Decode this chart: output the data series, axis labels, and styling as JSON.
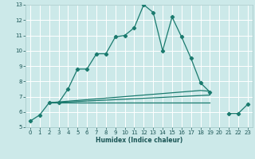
{
  "xlabel": "Humidex (Indice chaleur)",
  "ylabel": "",
  "xlim": [
    -0.5,
    23.5
  ],
  "ylim": [
    5,
    13
  ],
  "yticks": [
    5,
    6,
    7,
    8,
    9,
    10,
    11,
    12,
    13
  ],
  "xticks": [
    0,
    1,
    2,
    3,
    4,
    5,
    6,
    7,
    8,
    9,
    10,
    11,
    12,
    13,
    14,
    15,
    16,
    17,
    18,
    19,
    20,
    21,
    22,
    23
  ],
  "background_color": "#cce9e9",
  "grid_color": "#ffffff",
  "line_color": "#1a7a6e",
  "line1_y": [
    5.4,
    5.8,
    6.6,
    6.6,
    7.5,
    8.8,
    8.8,
    9.8,
    9.8,
    10.9,
    11.0,
    11.5,
    13.0,
    12.5,
    10.0,
    12.2,
    10.9,
    9.5,
    7.9,
    7.3,
    null,
    5.9,
    5.9,
    6.5
  ],
  "line2_y": [
    null,
    null,
    6.6,
    6.65,
    6.7,
    6.75,
    6.8,
    6.85,
    6.9,
    6.95,
    7.0,
    7.05,
    7.1,
    7.15,
    7.2,
    7.25,
    7.3,
    7.35,
    7.4,
    7.35,
    null,
    null,
    null,
    null
  ],
  "line3_y": [
    null,
    null,
    6.6,
    6.62,
    6.65,
    6.68,
    6.71,
    6.74,
    6.77,
    6.8,
    6.83,
    6.86,
    6.89,
    6.92,
    6.95,
    6.98,
    7.01,
    7.04,
    7.07,
    7.1,
    null,
    null,
    null,
    null
  ],
  "line4_y": [
    null,
    null,
    6.6,
    6.6,
    6.6,
    6.6,
    6.6,
    6.6,
    6.6,
    6.6,
    6.6,
    6.6,
    6.6,
    6.6,
    6.6,
    6.6,
    6.6,
    6.6,
    6.6,
    6.6,
    null,
    null,
    null,
    null
  ]
}
